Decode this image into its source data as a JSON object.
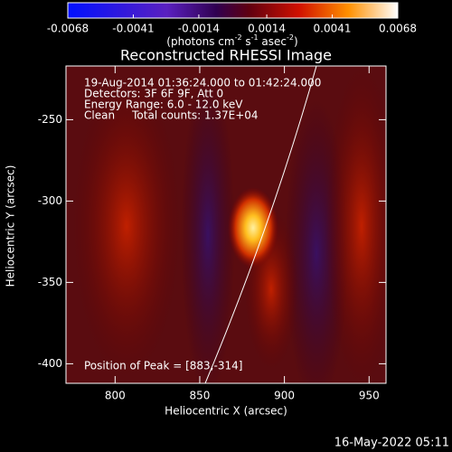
{
  "chart_data": {
    "type": "heatmap",
    "title": "Reconstructed RHESSI Image",
    "xlabel": "Heliocentric X (arcsec)",
    "ylabel": "Heliocentric Y (arcsec)",
    "xlim": [
      771,
      960
    ],
    "xticks": [
      800,
      850,
      900,
      950
    ],
    "ylim": [
      -412,
      -217
    ],
    "yticks": [
      -250,
      -300,
      -350,
      -400
    ],
    "colorbar": {
      "lim": [
        -0.0068,
        0.0068
      ],
      "ticks": [
        -0.0068,
        -0.0041,
        -0.0014,
        0.0014,
        0.0041,
        0.0068
      ],
      "label": [
        "(photons cm",
        "-2",
        " s",
        "-1",
        " asec",
        "-2",
        ")"
      ]
    },
    "annotations": [
      "19-Aug-2014 01:36:24.000 to 01:42:24.000",
      "Detectors: 3F 6F 9F, Att 0",
      "Energy Range: 6.0 - 12.0 keV",
      "Clean     Total counts: 1.37E+04"
    ],
    "peak_label": "Position of Peak = [883,-314]",
    "footer": "16-May-2022 05:11"
  }
}
